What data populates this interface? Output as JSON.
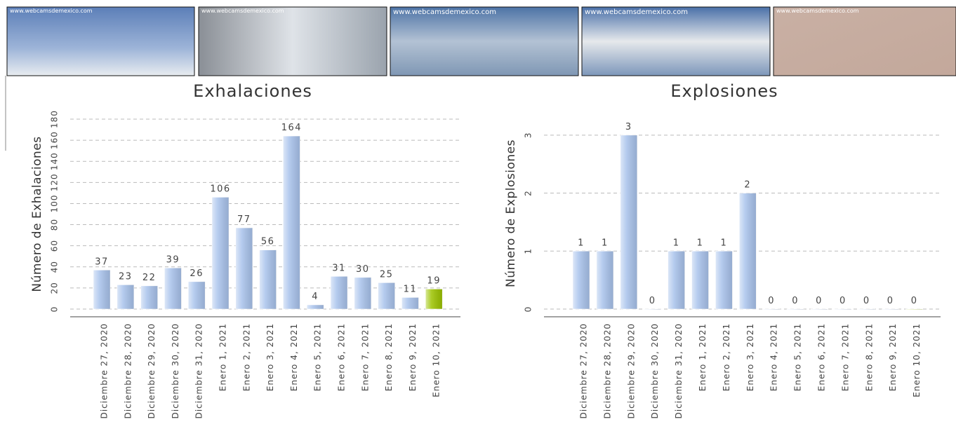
{
  "webcams": [
    "www.webcamsdemexico.com",
    "www.webcamsdemexico.com",
    "www.webcamsdemexico.com",
    "www.webcamsdemexico.com",
    "www.webcamsdemexico.com"
  ],
  "chart_data": [
    {
      "type": "bar",
      "title": "Exhalaciones",
      "y_label": "Número de Exhalaciones",
      "categories": [
        "Diciembre 27, 2020",
        "Diciembre 28, 2020",
        "Diciembre 29, 2020",
        "Diciembre 30, 2020",
        "Diciembre 31, 2020",
        "Enero 1, 2021",
        "Enero 2, 2021",
        "Enero 3, 2021",
        "Enero 4, 2021",
        "Enero 5, 2021",
        "Enero 6, 2021",
        "Enero 7, 2021",
        "Enero 8, 2021",
        "Enero 9, 2021",
        "Enero 10, 2021"
      ],
      "values": [
        37,
        23,
        22,
        39,
        26,
        106,
        77,
        56,
        164,
        4,
        31,
        30,
        25,
        11,
        19
      ],
      "colors": [
        "#a9c3ec",
        "#a9c3ec",
        "#a9c3ec",
        "#a9c3ec",
        "#a9c3ec",
        "#a9c3ec",
        "#a9c3ec",
        "#a9c3ec",
        "#a9c3ec",
        "#a9c3ec",
        "#a9c3ec",
        "#a9c3ec",
        "#a9c3ec",
        "#a9c3ec",
        "#9cc300"
      ],
      "ylim": [
        0,
        180
      ],
      "yticks": [
        0,
        20,
        40,
        60,
        80,
        100,
        120,
        140,
        160,
        180
      ],
      "grid": true
    },
    {
      "type": "bar",
      "title": "Explosiones",
      "y_label": "Número de Explosiones",
      "categories": [
        "Diciembre 27, 2020",
        "Diciembre 28, 2020",
        "Diciembre 29, 2020",
        "Diciembre 30, 2020",
        "Diciembre 31, 2020",
        "Enero 1, 2021",
        "Enero 2, 2021",
        "Enero 3, 2021",
        "Enero 4, 2021",
        "Enero 5, 2021",
        "Enero 6, 2021",
        "Enero 7, 2021",
        "Enero 8, 2021",
        "Enero 9, 2021",
        "Enero 10, 2021"
      ],
      "values": [
        1,
        1,
        3,
        0,
        1,
        1,
        1,
        2,
        0,
        0,
        0,
        0,
        0,
        0,
        0
      ],
      "colors": [
        "#a9c3ec",
        "#a9c3ec",
        "#a9c3ec",
        "#a9c3ec",
        "#a9c3ec",
        "#a9c3ec",
        "#a9c3ec",
        "#a9c3ec",
        "#a9c3ec",
        "#a9c3ec",
        "#a9c3ec",
        "#a9c3ec",
        "#a9c3ec",
        "#a9c3ec",
        "#9cc300"
      ],
      "ylim": [
        0,
        3.3
      ],
      "yticks": [
        0,
        1,
        2,
        3
      ],
      "grid": true
    }
  ]
}
